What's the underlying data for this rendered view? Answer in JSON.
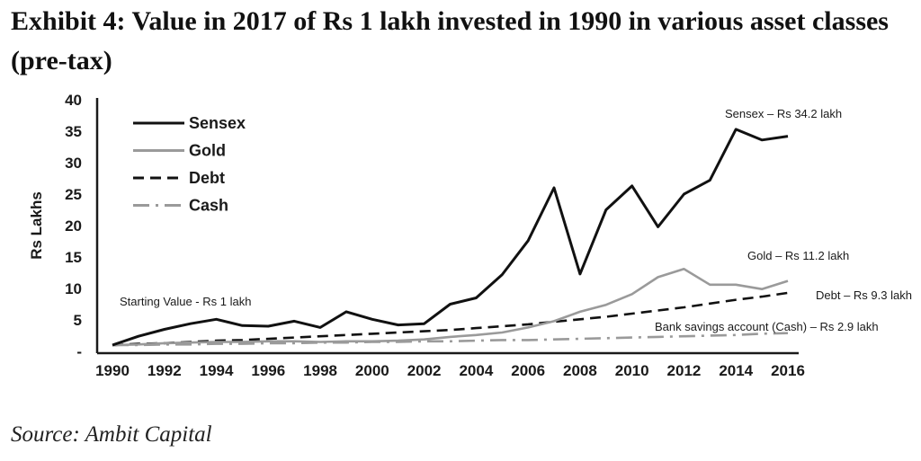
{
  "header": {
    "title": "Exhibit 4: Value in 2017 of Rs 1 lakh invested in 1990 in various asset classes (pre-tax)"
  },
  "footer": {
    "source": "Source: Ambit Capital"
  },
  "chart_data": {
    "type": "line",
    "title": "Exhibit 4: Value in 2017 of Rs 1 lakh invested in 1990 in various asset classes (pre-tax)",
    "xlabel": "",
    "ylabel": "Rs Lakhs",
    "xlim": [
      1990,
      2016
    ],
    "ylim": [
      0,
      40
    ],
    "grid": false,
    "legend_position": "top-left",
    "x_ticks": [
      "1990",
      "1992",
      "1994",
      "1996",
      "1998",
      "2000",
      "2002",
      "2004",
      "2006",
      "2008",
      "2010",
      "2012",
      "2014",
      "2016"
    ],
    "y_ticks": [
      "-",
      "5",
      "10",
      "15",
      "20",
      "25",
      "30",
      "35",
      "40"
    ],
    "x": [
      1990,
      1991,
      1992,
      1993,
      1994,
      1995,
      1996,
      1997,
      1998,
      1999,
      2000,
      2001,
      2002,
      2003,
      2004,
      2005,
      2006,
      2007,
      2008,
      2009,
      2010,
      2011,
      2012,
      2013,
      2014,
      2015,
      2016
    ],
    "series": [
      {
        "name": "Sensex",
        "style": "solid",
        "color": "#111111",
        "values": [
          1.0,
          2.4,
          3.5,
          4.4,
          5.1,
          4.1,
          4.0,
          4.8,
          3.8,
          6.3,
          5.1,
          4.2,
          4.4,
          7.5,
          8.5,
          12.2,
          17.6,
          26.0,
          12.3,
          22.5,
          26.3,
          19.8,
          25.0,
          27.2,
          35.3,
          33.6,
          34.2
        ]
      },
      {
        "name": "Gold",
        "style": "solid",
        "color": "#9a9a9a",
        "values": [
          1.0,
          1.1,
          1.3,
          1.4,
          1.5,
          1.5,
          1.6,
          1.6,
          1.5,
          1.6,
          1.6,
          1.7,
          1.9,
          2.3,
          2.6,
          3.0,
          3.8,
          4.8,
          6.3,
          7.4,
          9.1,
          11.8,
          13.1,
          10.6,
          10.6,
          9.9,
          11.2
        ]
      },
      {
        "name": "Debt",
        "style": "dashed",
        "color": "#111111",
        "values": [
          1.0,
          1.2,
          1.3,
          1.5,
          1.7,
          1.8,
          2.0,
          2.2,
          2.4,
          2.6,
          2.8,
          3.0,
          3.2,
          3.4,
          3.7,
          4.0,
          4.3,
          4.7,
          5.1,
          5.5,
          6.0,
          6.5,
          7.0,
          7.6,
          8.2,
          8.7,
          9.3
        ]
      },
      {
        "name": "Cash",
        "style": "dash-dot",
        "color": "#9a9a9a",
        "values": [
          1.0,
          1.0,
          1.1,
          1.1,
          1.2,
          1.2,
          1.3,
          1.3,
          1.4,
          1.4,
          1.5,
          1.5,
          1.6,
          1.6,
          1.7,
          1.8,
          1.8,
          1.9,
          2.0,
          2.1,
          2.2,
          2.3,
          2.4,
          2.5,
          2.6,
          2.8,
          2.9
        ]
      }
    ],
    "legend": [
      "Sensex",
      "Gold",
      "Debt",
      "Cash"
    ],
    "annotations": [
      {
        "id": "start",
        "text": "Starting Value - Rs 1 lakh"
      },
      {
        "id": "sensex",
        "text": "Sensex – Rs 34.2 lakh"
      },
      {
        "id": "gold",
        "text": "Gold – Rs 11.2 lakh"
      },
      {
        "id": "debt",
        "text": "Debt – Rs 9.3 lakh"
      },
      {
        "id": "cash",
        "text": "Bank savings account (Cash) – Rs 2.9 lakh"
      }
    ]
  }
}
